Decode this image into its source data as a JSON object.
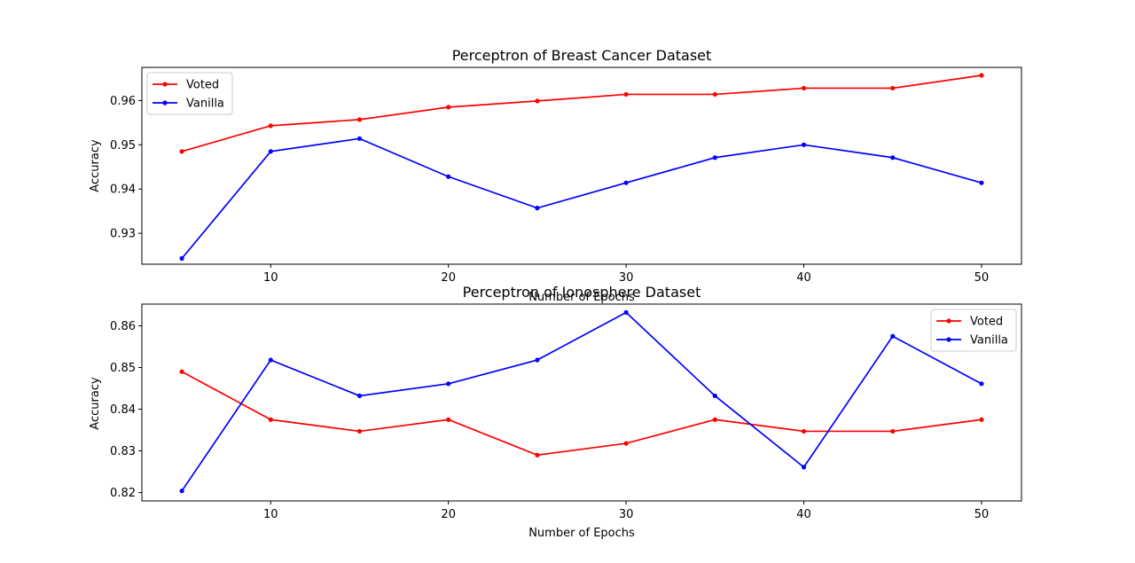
{
  "chart_data": [
    {
      "type": "line",
      "title": "Perceptron of Breast Cancer Dataset",
      "xlabel": "Number of Epochs",
      "ylabel": "Accuracy",
      "x": [
        5,
        10,
        15,
        20,
        25,
        30,
        35,
        40,
        45,
        50
      ],
      "xlim": [
        2.75,
        52.25
      ],
      "ylim": [
        0.923,
        0.9675
      ],
      "xticks": [
        10,
        20,
        30,
        40,
        50
      ],
      "xtick_labels": [
        "10",
        "20",
        "30",
        "40",
        "50"
      ],
      "yticks": [
        0.93,
        0.94,
        0.95,
        0.96
      ],
      "ytick_labels": [
        "0.93",
        "0.94",
        "0.95",
        "0.96"
      ],
      "grid": false,
      "legend_position": "top-left",
      "series": [
        {
          "name": "Voted",
          "color": "#ff0000",
          "values": [
            0.9485,
            0.9543,
            0.9557,
            0.9585,
            0.9599,
            0.9614,
            0.9614,
            0.9628,
            0.9628,
            0.9657
          ]
        },
        {
          "name": "Vanilla",
          "color": "#0000ff",
          "values": [
            0.9243,
            0.9485,
            0.9514,
            0.9428,
            0.9357,
            0.9414,
            0.9471,
            0.95,
            0.9471,
            0.9414
          ]
        }
      ]
    },
    {
      "type": "line",
      "title": "Perceptron of Ionosphere Dataset",
      "xlabel": "Number of Epochs",
      "ylabel": "Accuracy",
      "x": [
        5,
        10,
        15,
        20,
        25,
        30,
        35,
        40,
        45,
        50
      ],
      "xlim": [
        2.75,
        52.25
      ],
      "ylim": [
        0.818,
        0.8652
      ],
      "xticks": [
        10,
        20,
        30,
        40,
        50
      ],
      "xtick_labels": [
        "10",
        "20",
        "30",
        "40",
        "50"
      ],
      "yticks": [
        0.82,
        0.83,
        0.84,
        0.85,
        0.86
      ],
      "ytick_labels": [
        "0.82",
        "0.83",
        "0.84",
        "0.85",
        "0.86"
      ],
      "grid": false,
      "legend_position": "top-right",
      "series": [
        {
          "name": "Voted",
          "color": "#ff0000",
          "values": [
            0.849,
            0.8375,
            0.8347,
            0.8375,
            0.829,
            0.8318,
            0.8375,
            0.8347,
            0.8347,
            0.8375
          ]
        },
        {
          "name": "Vanilla",
          "color": "#0000ff",
          "values": [
            0.8204,
            0.8518,
            0.8432,
            0.8461,
            0.8518,
            0.8632,
            0.8432,
            0.8261,
            0.8575,
            0.8461
          ]
        }
      ]
    }
  ]
}
